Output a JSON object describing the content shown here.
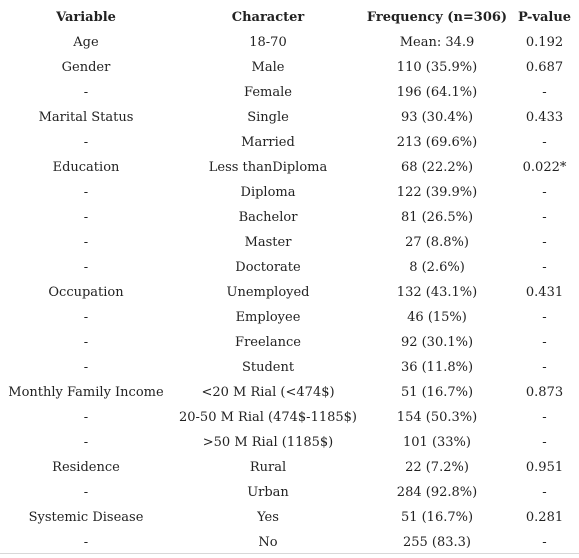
{
  "table": {
    "headers": [
      "Variable",
      "Character",
      "Frequency (n=306)",
      "P-value"
    ],
    "rows": [
      [
        "Age",
        "18-70",
        "Mean: 34.9",
        "0.192"
      ],
      [
        "Gender",
        "Male",
        "110 (35.9%)",
        "0.687"
      ],
      [
        "-",
        "Female",
        "196 (64.1%)",
        "-"
      ],
      [
        "Marital Status",
        "Single",
        "93 (30.4%)",
        "0.433"
      ],
      [
        "-",
        "Married",
        "213 (69.6%)",
        "-"
      ],
      [
        "Education",
        "Less thanDiploma",
        "68 (22.2%)",
        "0.022*"
      ],
      [
        "-",
        "Diploma",
        "122 (39.9%)",
        "-"
      ],
      [
        "-",
        "Bachelor",
        "81 (26.5%)",
        "-"
      ],
      [
        "-",
        "Master",
        "27 (8.8%)",
        "-"
      ],
      [
        "-",
        "Doctorate",
        "8 (2.6%)",
        "-"
      ],
      [
        "Occupation",
        "Unemployed",
        "132 (43.1%)",
        "0.431"
      ],
      [
        "-",
        "Employee",
        "46 (15%)",
        "-"
      ],
      [
        "-",
        "Freelance",
        "92 (30.1%)",
        "-"
      ],
      [
        "-",
        "Student",
        "36 (11.8%)",
        "-"
      ],
      [
        "Monthly Family Income",
        "<20 M Rial (<474$)",
        "51 (16.7%)",
        "0.873"
      ],
      [
        "-",
        "20-50 M Rial (474$-1185$)",
        "154 (50.3%)",
        "-"
      ],
      [
        "-",
        ">50 M Rial (1185$)",
        "101 (33%)",
        "-"
      ],
      [
        "Residence",
        "Rural",
        "22 (7.2%)",
        "0.951"
      ],
      [
        "-",
        "Urban",
        "284 (92.8%)",
        "-"
      ],
      [
        "Systemic Disease",
        "Yes",
        "51 (16.7%)",
        "0.281"
      ],
      [
        "-",
        "No",
        "255 (83.3)",
        "-"
      ]
    ]
  }
}
